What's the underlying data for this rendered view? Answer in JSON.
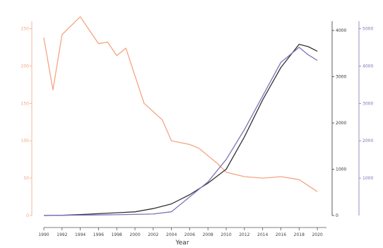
{
  "chart_data": {
    "type": "line",
    "title": "",
    "xlabel": "Year",
    "x": [
      1990,
      1992,
      1994,
      1996,
      1998,
      2000,
      2002,
      2004,
      2006,
      2008,
      2010,
      2012,
      2014,
      2016,
      2018,
      2020
    ],
    "xlim": [
      1990,
      2021
    ],
    "x_ticks": [
      "1990",
      "1992",
      "1994",
      "1996",
      "1998",
      "2000",
      "2002",
      "2004",
      "2006",
      "2008",
      "2010",
      "2012",
      "2014",
      "2016",
      "2018",
      "2020"
    ],
    "axes": {
      "left": {
        "label": "",
        "color": "#f4a582",
        "ylim": [
          0,
          260
        ],
        "ticks": [
          "0",
          "50",
          "100",
          "150",
          "200",
          "250"
        ]
      },
      "right1": {
        "label": "",
        "color": "#333333",
        "ylim": [
          0,
          4200
        ],
        "ticks": [
          "0",
          "1000",
          "2000",
          "3000",
          "4000"
        ]
      },
      "right2": {
        "label": "",
        "color": "#7b74b8",
        "ylim": [
          0,
          5200
        ],
        "ticks": [
          "1000",
          "2000",
          "3000",
          "4000",
          "5000"
        ]
      }
    },
    "series": [
      {
        "name": "",
        "axis": "left",
        "color": "#f4a582",
        "values": [
          238,
          168,
          242,
          266,
          230,
          232,
          214,
          224,
          150,
          128,
          100,
          95,
          90,
          70,
          58,
          52,
          50,
          52,
          48,
          40,
          32
        ],
        "x": [
          1990,
          1991,
          1992,
          1994,
          1996,
          1997,
          1998,
          1999,
          2001,
          2003,
          2004,
          2006,
          2007,
          2009,
          2010,
          2012,
          2014,
          2016,
          2018,
          2019,
          2020
        ]
      },
      {
        "name": "",
        "axis": "right1",
        "color": "#333333",
        "x": [
          1990,
          1992,
          1994,
          1996,
          1998,
          2000,
          2002,
          2004,
          2006,
          2008,
          2010,
          2012,
          2014,
          2016,
          2018,
          2019,
          2020
        ],
        "values": [
          0,
          5,
          20,
          40,
          60,
          80,
          150,
          250,
          450,
          700,
          1000,
          1700,
          2500,
          3200,
          3700,
          3650,
          3550
        ]
      },
      {
        "name": "",
        "axis": "right2",
        "color": "#7b74b8",
        "x": [
          1990,
          1992,
          1994,
          1996,
          1998,
          2000,
          2002,
          2004,
          2006,
          2008,
          2010,
          2012,
          2014,
          2016,
          2018,
          2019,
          2020
        ],
        "values": [
          0,
          5,
          10,
          15,
          20,
          30,
          40,
          100,
          500,
          900,
          1500,
          2300,
          3200,
          4100,
          4500,
          4300,
          4150
        ]
      }
    ],
    "grid": false,
    "legend": "none"
  }
}
